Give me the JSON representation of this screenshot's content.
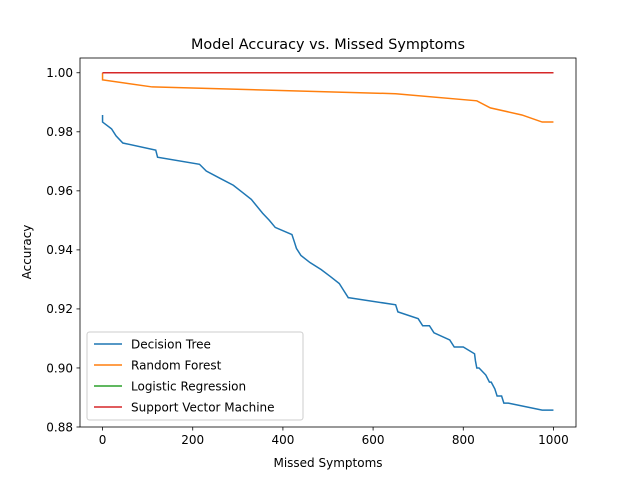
{
  "chart_data": {
    "type": "line",
    "title": "Model Accuracy vs. Missed Symptoms",
    "xlabel": "Missed Symptoms",
    "ylabel": "Accuracy",
    "xlim": [
      -50,
      1050
    ],
    "ylim": [
      0.88,
      1.005
    ],
    "xticks": [
      0,
      200,
      400,
      600,
      800,
      1000
    ],
    "xtick_labels": [
      "0",
      "200",
      "400",
      "600",
      "800",
      "1000"
    ],
    "yticks": [
      0.88,
      0.9,
      0.92,
      0.94,
      0.96,
      0.98,
      1.0
    ],
    "ytick_labels": [
      "0.88",
      "0.90",
      "0.92",
      "0.94",
      "0.96",
      "0.98",
      "1.00"
    ],
    "grid": false,
    "legend_position": "lower-left",
    "series": [
      {
        "name": "Decision Tree",
        "color": "#1f77b4",
        "x": [
          0,
          0,
          20,
          30,
          45,
          118,
          122,
          215,
          230,
          260,
          290,
          310,
          330,
          355,
          370,
          383,
          420,
          425,
          430,
          440,
          460,
          485,
          505,
          525,
          535,
          545,
          547,
          650,
          655,
          700,
          710,
          725,
          735,
          770,
          780,
          800,
          825,
          827,
          830,
          835,
          850,
          858,
          862,
          870,
          875,
          885,
          890,
          900,
          975,
          980,
          1000
        ],
        "y": [
          0.9857,
          0.9833,
          0.981,
          0.9786,
          0.9762,
          0.9738,
          0.9714,
          0.969,
          0.9667,
          0.9643,
          0.9619,
          0.9595,
          0.9571,
          0.9524,
          0.95,
          0.9476,
          0.9452,
          0.9429,
          0.9405,
          0.9381,
          0.9357,
          0.9333,
          0.931,
          0.9286,
          0.9262,
          0.9238,
          0.9238,
          0.9214,
          0.919,
          0.9167,
          0.9143,
          0.9143,
          0.9119,
          0.9095,
          0.9071,
          0.9071,
          0.9048,
          0.9024,
          0.9,
          0.9,
          0.8976,
          0.8952,
          0.8952,
          0.8929,
          0.8905,
          0.8905,
          0.8881,
          0.8881,
          0.8857,
          0.8857,
          0.8857
        ]
      },
      {
        "name": "Random Forest",
        "color": "#ff7f0e",
        "x": [
          0,
          0,
          110,
          650,
          830,
          860,
          930,
          975,
          1000
        ],
        "y": [
          1.0,
          0.9976,
          0.9952,
          0.9929,
          0.9905,
          0.9881,
          0.9857,
          0.9833,
          0.9833
        ]
      },
      {
        "name": "Logistic Regression",
        "color": "#2ca02c",
        "x": [
          0,
          1000
        ],
        "y": [
          1.0,
          1.0
        ]
      },
      {
        "name": "Support Vector Machine",
        "color": "#d62728",
        "x": [
          0,
          1000
        ],
        "y": [
          1.0,
          1.0
        ]
      }
    ]
  }
}
